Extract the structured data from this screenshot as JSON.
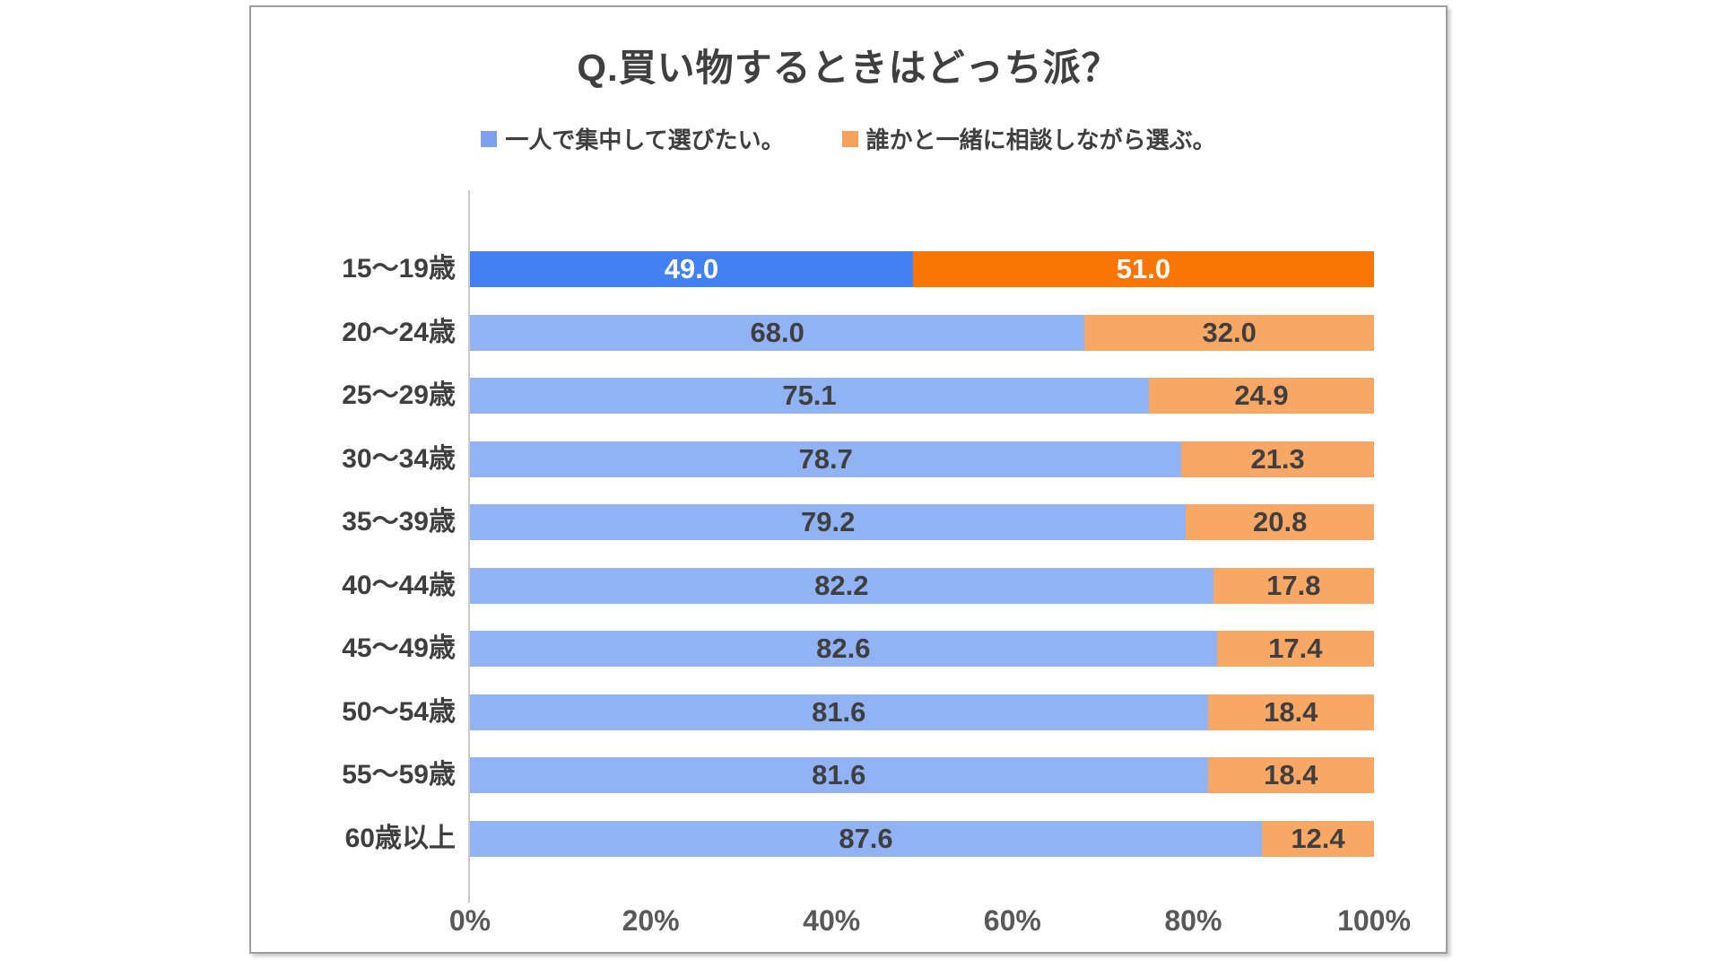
{
  "chart_data": {
    "type": "bar",
    "orientation": "horizontal",
    "stacked": true,
    "title": "Q.買い物するときはどっち派？",
    "categories": [
      "15〜19歳",
      "20〜24歳",
      "25〜29歳",
      "30〜34歳",
      "35〜39歳",
      "40〜44歳",
      "45〜49歳",
      "50〜54歳",
      "55〜59歳",
      "60歳以上"
    ],
    "series": [
      {
        "name": "一人で集中して選びたい。",
        "values": [
          49.0,
          68.0,
          75.1,
          78.7,
          79.2,
          82.2,
          82.6,
          81.6,
          81.6,
          87.6
        ]
      },
      {
        "name": "誰かと一緒に相談しながら選ぶ。",
        "values": [
          51.0,
          32.0,
          24.9,
          21.3,
          20.8,
          17.8,
          17.4,
          18.4,
          18.4,
          12.4
        ]
      }
    ],
    "value_labels": [
      [
        "49.0",
        "51.0"
      ],
      [
        "68.0",
        "32.0"
      ],
      [
        "75.1",
        "24.9"
      ],
      [
        "78.7",
        "21.3"
      ],
      [
        "79.2",
        "20.8"
      ],
      [
        "82.2",
        "17.8"
      ],
      [
        "82.6",
        "17.4"
      ],
      [
        "81.6",
        "18.4"
      ],
      [
        "81.6",
        "18.4"
      ],
      [
        "87.6",
        "12.4"
      ]
    ],
    "highlight_row_index": 0,
    "xlim": [
      0,
      100
    ],
    "xticks": [
      "0%",
      "20%",
      "40%",
      "60%",
      "80%",
      "100%"
    ],
    "legend_position": "top-center",
    "grid": false
  },
  "colors": {
    "series1": "#91B3F4",
    "series1_highlight": "#4181F0",
    "series2": "#F9A765",
    "series2_highlight": "#FA7505",
    "series1_legend": "#7DA1EC",
    "series2_legend": "#F7A05C",
    "value_text": "#3F3F3F",
    "value_text_highlight": "#FFFFFF",
    "axis_text": "#595959",
    "title_text": "#3F3F3F",
    "frame_border": "#9E9E9E"
  }
}
